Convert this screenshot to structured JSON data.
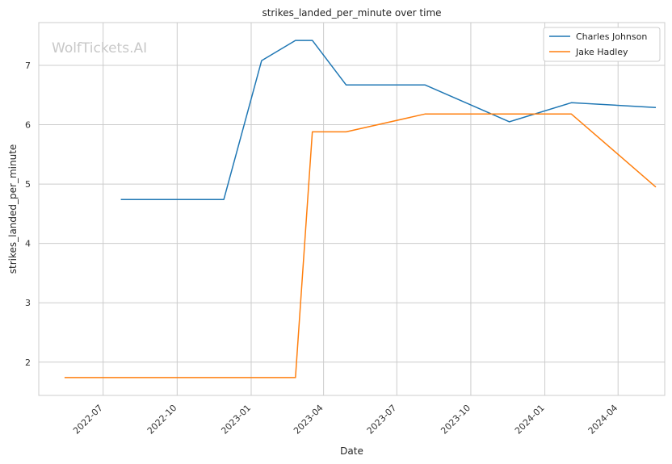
{
  "chart_data": {
    "type": "line",
    "title": "strikes_landed_per_minute over time",
    "xlabel": "Date",
    "ylabel": "strikes_landed_per_minute",
    "watermark": "WolfTickets.AI",
    "x_ticks": [
      "2022-07",
      "2022-10",
      "2023-01",
      "2023-04",
      "2023-07",
      "2023-10",
      "2024-01",
      "2024-04"
    ],
    "y_ticks": [
      "2",
      "3",
      "4",
      "5",
      "6",
      "7"
    ],
    "xlim": [
      "2022-04-12",
      "2024-05-29"
    ],
    "ylim": [
      1.44,
      7.72
    ],
    "grid": true,
    "legend_position": "top-right",
    "series": [
      {
        "name": "Charles Johnson",
        "color": "#1f77b4",
        "x": [
          "2022-07-23",
          "2022-11-28",
          "2023-01-14",
          "2023-02-25",
          "2023-03-18",
          "2023-04-29",
          "2023-08-05",
          "2023-11-18",
          "2024-02-03",
          "2024-05-18"
        ],
        "values": [
          4.74,
          4.74,
          7.08,
          7.42,
          7.42,
          6.67,
          6.67,
          6.05,
          6.37,
          6.29
        ]
      },
      {
        "name": "Jake Hadley",
        "color": "#ff7f0e",
        "x": [
          "2022-05-14",
          "2023-02-25",
          "2023-03-18",
          "2023-04-29",
          "2023-08-05",
          "2024-02-03",
          "2024-05-18"
        ],
        "values": [
          1.74,
          1.74,
          5.88,
          5.88,
          6.18,
          6.18,
          4.95
        ]
      }
    ]
  }
}
